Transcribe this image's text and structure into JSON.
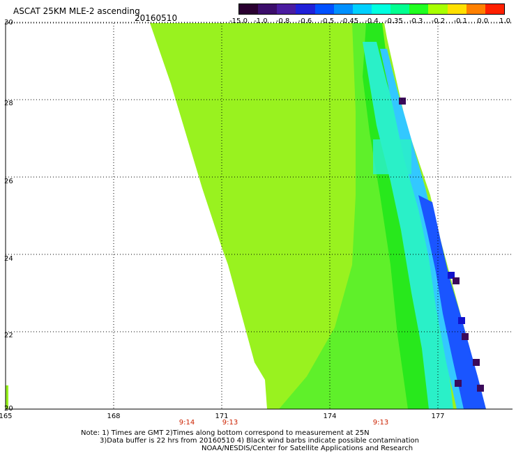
{
  "header": {
    "title": "ASCAT 25KM MLE-2 ascending",
    "date": "20160510"
  },
  "colorbar": {
    "labels": [
      "-15.0",
      "-1.0",
      "-0.8",
      "-0.6",
      "-0.5",
      "-0.45",
      "-0.4",
      "-0.35",
      "-0.3",
      "-0.2",
      "-0.1",
      "0.0",
      "1.0"
    ],
    "colors": [
      "#2a0030",
      "#3b0d6a",
      "#4a1ca0",
      "#2020d8",
      "#0050ff",
      "#0090ff",
      "#00d0ff",
      "#00ffe0",
      "#00ff90",
      "#20ff20",
      "#a8ff00",
      "#ffe000",
      "#ff8000",
      "#ff2000"
    ]
  },
  "map": {
    "y_ticks": [
      "30",
      "28",
      "26",
      "24",
      "22",
      "20"
    ],
    "x_ticks": [
      "165",
      "168",
      "171",
      "174",
      "177"
    ],
    "time_labels": [
      {
        "text": "9:14",
        "lon": 170.0
      },
      {
        "text": "9:13",
        "lon": 171.3
      },
      {
        "text": "9:13",
        "lon": 175.7
      }
    ],
    "swath_colors": {
      "main": "#99f21f",
      "inner": "#5ff02a",
      "green": "#28e81c",
      "cyan": "#2af0c8",
      "lightblue": "#33c8ff",
      "blue": "#1a55ff",
      "darkblue": "#1111cc",
      "purple": "#3b0a5a"
    }
  },
  "notes": {
    "line1": "Note: 1) Times are GMT 2)Times along bottom correspond to measurement at 25N",
    "line2": "3)Data buffer is 22 hrs from 20160510 4) Black wind barbs indicate possible contamination",
    "line3": "NOAA/NESDIS/Center for Satellite Applications and Research"
  }
}
